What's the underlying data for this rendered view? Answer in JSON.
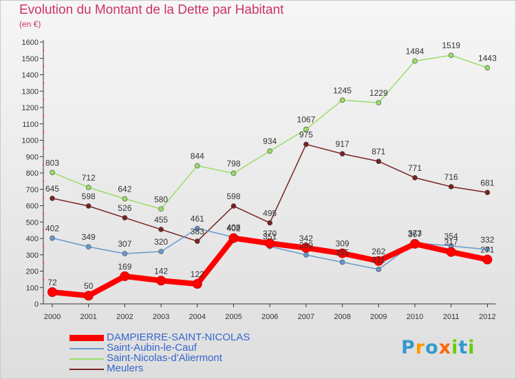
{
  "title": "Evolution du Montant de la Dette par Habitant",
  "subtitle": "(en €)",
  "logo": {
    "letters": [
      "P",
      "r",
      "o",
      "x",
      "i",
      "t",
      "i"
    ],
    "colors": [
      "#3399cc",
      "#ff9900",
      "#3399cc",
      "#ff6600",
      "#66cc00",
      "#3399cc",
      "#66cc00"
    ]
  },
  "chart_data": {
    "type": "line",
    "x": [
      "2000",
      "2001",
      "2002",
      "2003",
      "2004",
      "2005",
      "2006",
      "2007",
      "2008",
      "2009",
      "2010",
      "2011",
      "2012"
    ],
    "ylim": [
      0,
      1600
    ],
    "yticks": [
      0,
      100,
      200,
      300,
      400,
      500,
      600,
      700,
      800,
      900,
      1000,
      1100,
      1200,
      1300,
      1400,
      1500,
      1600
    ],
    "grid": false,
    "legend_position": "bottom-left",
    "series": [
      {
        "name": "DAMPIERRE-SAINT-NICOLAS",
        "color": "#ff0000",
        "emphasis": true,
        "values": [
          72,
          50,
          169,
          142,
          122,
          402,
          370,
          342,
          309,
          262,
          367,
          317,
          271
        ]
      },
      {
        "name": "Saint-Aubin-le-Cauf",
        "color": "#6699cc",
        "emphasis": false,
        "values": [
          402,
          349,
          307,
          320,
          461,
          408,
          351,
          299,
          255,
          211,
          373,
          354,
          332
        ]
      },
      {
        "name": "Saint-Nicolas-d'Aliermont",
        "color": "#99dd66",
        "emphasis": false,
        "values": [
          803,
          712,
          642,
          580,
          844,
          798,
          934,
          1067,
          1245,
          1229,
          1484,
          1519,
          1443
        ]
      },
      {
        "name": "Meulers",
        "color": "#772222",
        "emphasis": false,
        "values": [
          645,
          598,
          526,
          455,
          383,
          598,
          495,
          975,
          917,
          871,
          771,
          716,
          681
        ]
      }
    ]
  }
}
